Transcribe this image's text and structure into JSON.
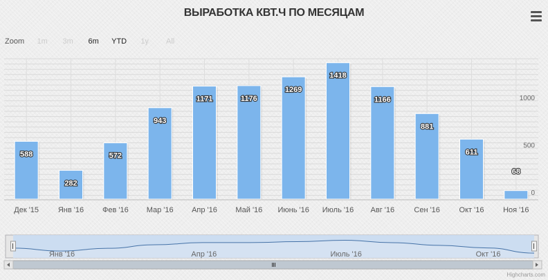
{
  "title": "ВЫРАБОТКА КВТ.Ч ПО МЕСЯЦАМ",
  "menu_icon": "hamburger-icon",
  "zoom": {
    "label": "Zoom",
    "buttons": [
      {
        "label": "1m",
        "active": false
      },
      {
        "label": "3m",
        "active": false
      },
      {
        "label": "6m",
        "active": true
      },
      {
        "label": "YTD",
        "active": true
      },
      {
        "label": "1y",
        "active": false
      },
      {
        "label": "All",
        "active": false
      }
    ]
  },
  "credit": "Highcharts.com",
  "colors": {
    "bar": "#7cb5ec",
    "navigator_line": "#4572a7",
    "navigator_fill": "#c9dcf2"
  },
  "chart_data": {
    "type": "bar",
    "title": "ВЫРАБОТКА КВТ.Ч ПО МЕСЯЦАМ",
    "categories": [
      "Дек '15",
      "Янв '16",
      "Фев '16",
      "Мар '16",
      "Апр '16",
      "Май '16",
      "Июнь '16",
      "Июль '16",
      "Авг '16",
      "Сен '16",
      "Окт '16",
      "Ноя '16"
    ],
    "values": [
      588,
      282,
      572,
      943,
      1171,
      1176,
      1269,
      1418,
      1166,
      881,
      611,
      68
    ],
    "ylim": [
      0,
      1600
    ],
    "yticks": [
      0,
      500,
      1000
    ],
    "grid": true,
    "data_labels": true,
    "navigator": {
      "labels": [
        "Янв '16",
        "Апр '16",
        "Июль '16",
        "Окт '16"
      ],
      "label_values_index": [
        1,
        4,
        7,
        10
      ]
    }
  }
}
